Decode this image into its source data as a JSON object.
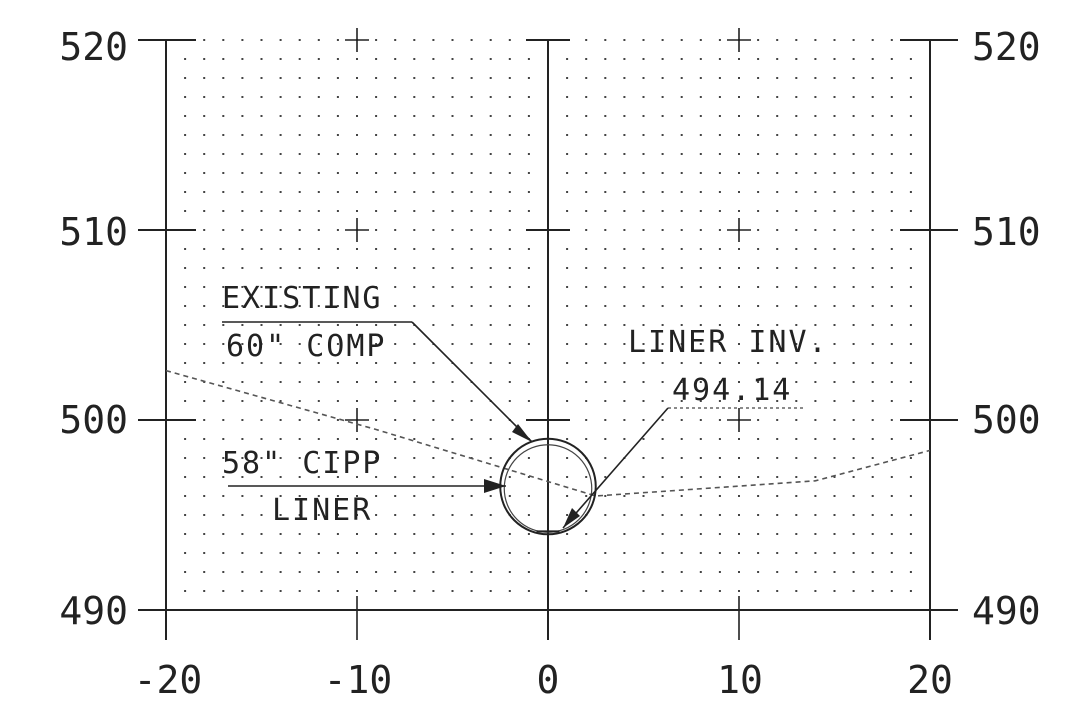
{
  "chart_data": {
    "type": "scatter",
    "title": "",
    "xlabel": "",
    "ylabel": "",
    "xlim": [
      -20,
      20
    ],
    "ylim": [
      490,
      520
    ],
    "grid": true,
    "x_ticks": [
      -20,
      -10,
      0,
      10,
      20
    ],
    "y_ticks": [
      490,
      500,
      510,
      520
    ],
    "x_tick_labels": [
      "-20",
      "-10",
      "0",
      "10",
      "20"
    ],
    "y_tick_labels": [
      "490",
      "500",
      "510",
      "520"
    ],
    "ground_profile": {
      "x": [
        -20,
        -9,
        2.5,
        14,
        20
      ],
      "y": [
        502.6,
        499.5,
        496,
        496.8,
        498.4
      ]
    },
    "pipe": {
      "center_x": 0,
      "center_y": 496.5,
      "radius": 2.5,
      "invert": 494.14
    },
    "annotations": [
      {
        "id": "existing",
        "lines": [
          "EXISTING",
          "60\" COMP"
        ]
      },
      {
        "id": "liner_inv",
        "lines": [
          "LINER INV.",
          "494.14"
        ]
      },
      {
        "id": "cipp",
        "lines": [
          "58\" CIPP",
          "LINER"
        ]
      }
    ]
  }
}
